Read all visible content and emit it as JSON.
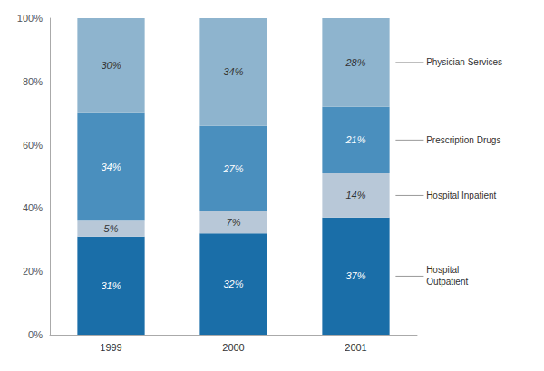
{
  "chart_data": {
    "type": "bar",
    "stacked": true,
    "categories": [
      "1999",
      "2000",
      "2001"
    ],
    "series": [
      {
        "name": "Hospital\nOutpatient",
        "color": "#1a6ea8",
        "values": [
          31,
          32,
          37
        ],
        "value_labels": [
          "31%",
          "32%",
          "37%"
        ]
      },
      {
        "name": "Hospital Inpatient",
        "color": "#b8c8d8",
        "values": [
          5,
          7,
          14
        ],
        "value_labels": [
          "5%",
          "7%",
          "14%"
        ]
      },
      {
        "name": "Prescription Drugs",
        "color": "#4a8fbe",
        "values": [
          34,
          27,
          21
        ],
        "value_labels": [
          "34%",
          "27%",
          "21%"
        ]
      },
      {
        "name": "Physician Services",
        "color": "#8eb4ce",
        "values": [
          30,
          34,
          28
        ],
        "value_labels": [
          "30%",
          "34%",
          "28%"
        ]
      }
    ],
    "ylim": [
      0,
      100
    ],
    "yticks": [
      {
        "value": 0,
        "label": "0%"
      },
      {
        "value": 20,
        "label": "20%"
      },
      {
        "value": 40,
        "label": "40%"
      },
      {
        "value": 60,
        "label": "60%"
      },
      {
        "value": 80,
        "label": "80%"
      },
      {
        "value": 100,
        "label": "100%"
      }
    ],
    "grid": false,
    "data_labels": true,
    "legend": "right"
  }
}
